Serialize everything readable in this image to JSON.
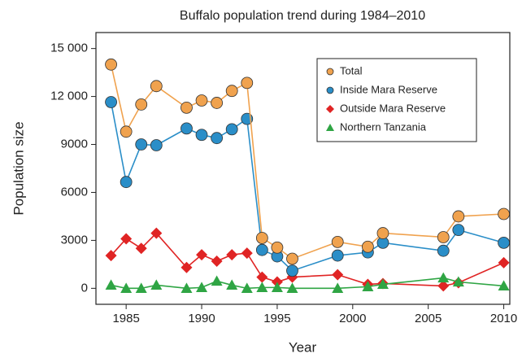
{
  "chart_data": {
    "type": "line",
    "title": "Buffalo population trend during 1984–2010",
    "x_label": "Year",
    "y_label": "Population size",
    "x": [
      1984,
      1985,
      1986,
      1987,
      1989,
      1990,
      1991,
      1992,
      1993,
      1994,
      1995,
      1996,
      1999,
      2001,
      2002,
      2006,
      2007,
      2010
    ],
    "series": [
      {
        "name": "Total",
        "color": "#f0a24e",
        "marker": "circle",
        "values": [
          14000,
          9800,
          11500,
          12650,
          11300,
          11750,
          11600,
          12350,
          12850,
          3150,
          2550,
          1850,
          2900,
          2600,
          3450,
          3200,
          4500,
          4650
        ]
      },
      {
        "name": "Inside Mara Reserve",
        "color": "#2a8ec8",
        "marker": "circle",
        "values": [
          11650,
          6650,
          9000,
          8950,
          10000,
          9600,
          9400,
          9950,
          10600,
          2400,
          2000,
          1100,
          2050,
          2250,
          2850,
          2350,
          3650,
          2850
        ]
      },
      {
        "name": "Outside Mara Reserve",
        "color": "#e02424",
        "marker": "diamond",
        "values": [
          2050,
          3100,
          2500,
          3450,
          1300,
          2100,
          1700,
          2100,
          2200,
          700,
          400,
          700,
          850,
          250,
          300,
          150,
          350,
          1600
        ]
      },
      {
        "name": "Northern Tanzania",
        "color": "#2fa544",
        "marker": "triangle",
        "values": [
          200,
          0,
          0,
          200,
          0,
          50,
          450,
          200,
          0,
          50,
          50,
          0,
          0,
          100,
          250,
          650,
          400,
          150
        ]
      }
    ],
    "xlim": [
      1983,
      2010.4
    ],
    "ylim": [
      -1000,
      16000
    ],
    "xticks": [
      1985,
      1990,
      1995,
      2000,
      2005,
      2010
    ],
    "yticks": [
      0,
      3000,
      6000,
      9000,
      {
        "value": 12000,
        "label": "12 000"
      },
      {
        "value": 15000,
        "label": "15 000"
      }
    ],
    "legend": "upper right"
  }
}
